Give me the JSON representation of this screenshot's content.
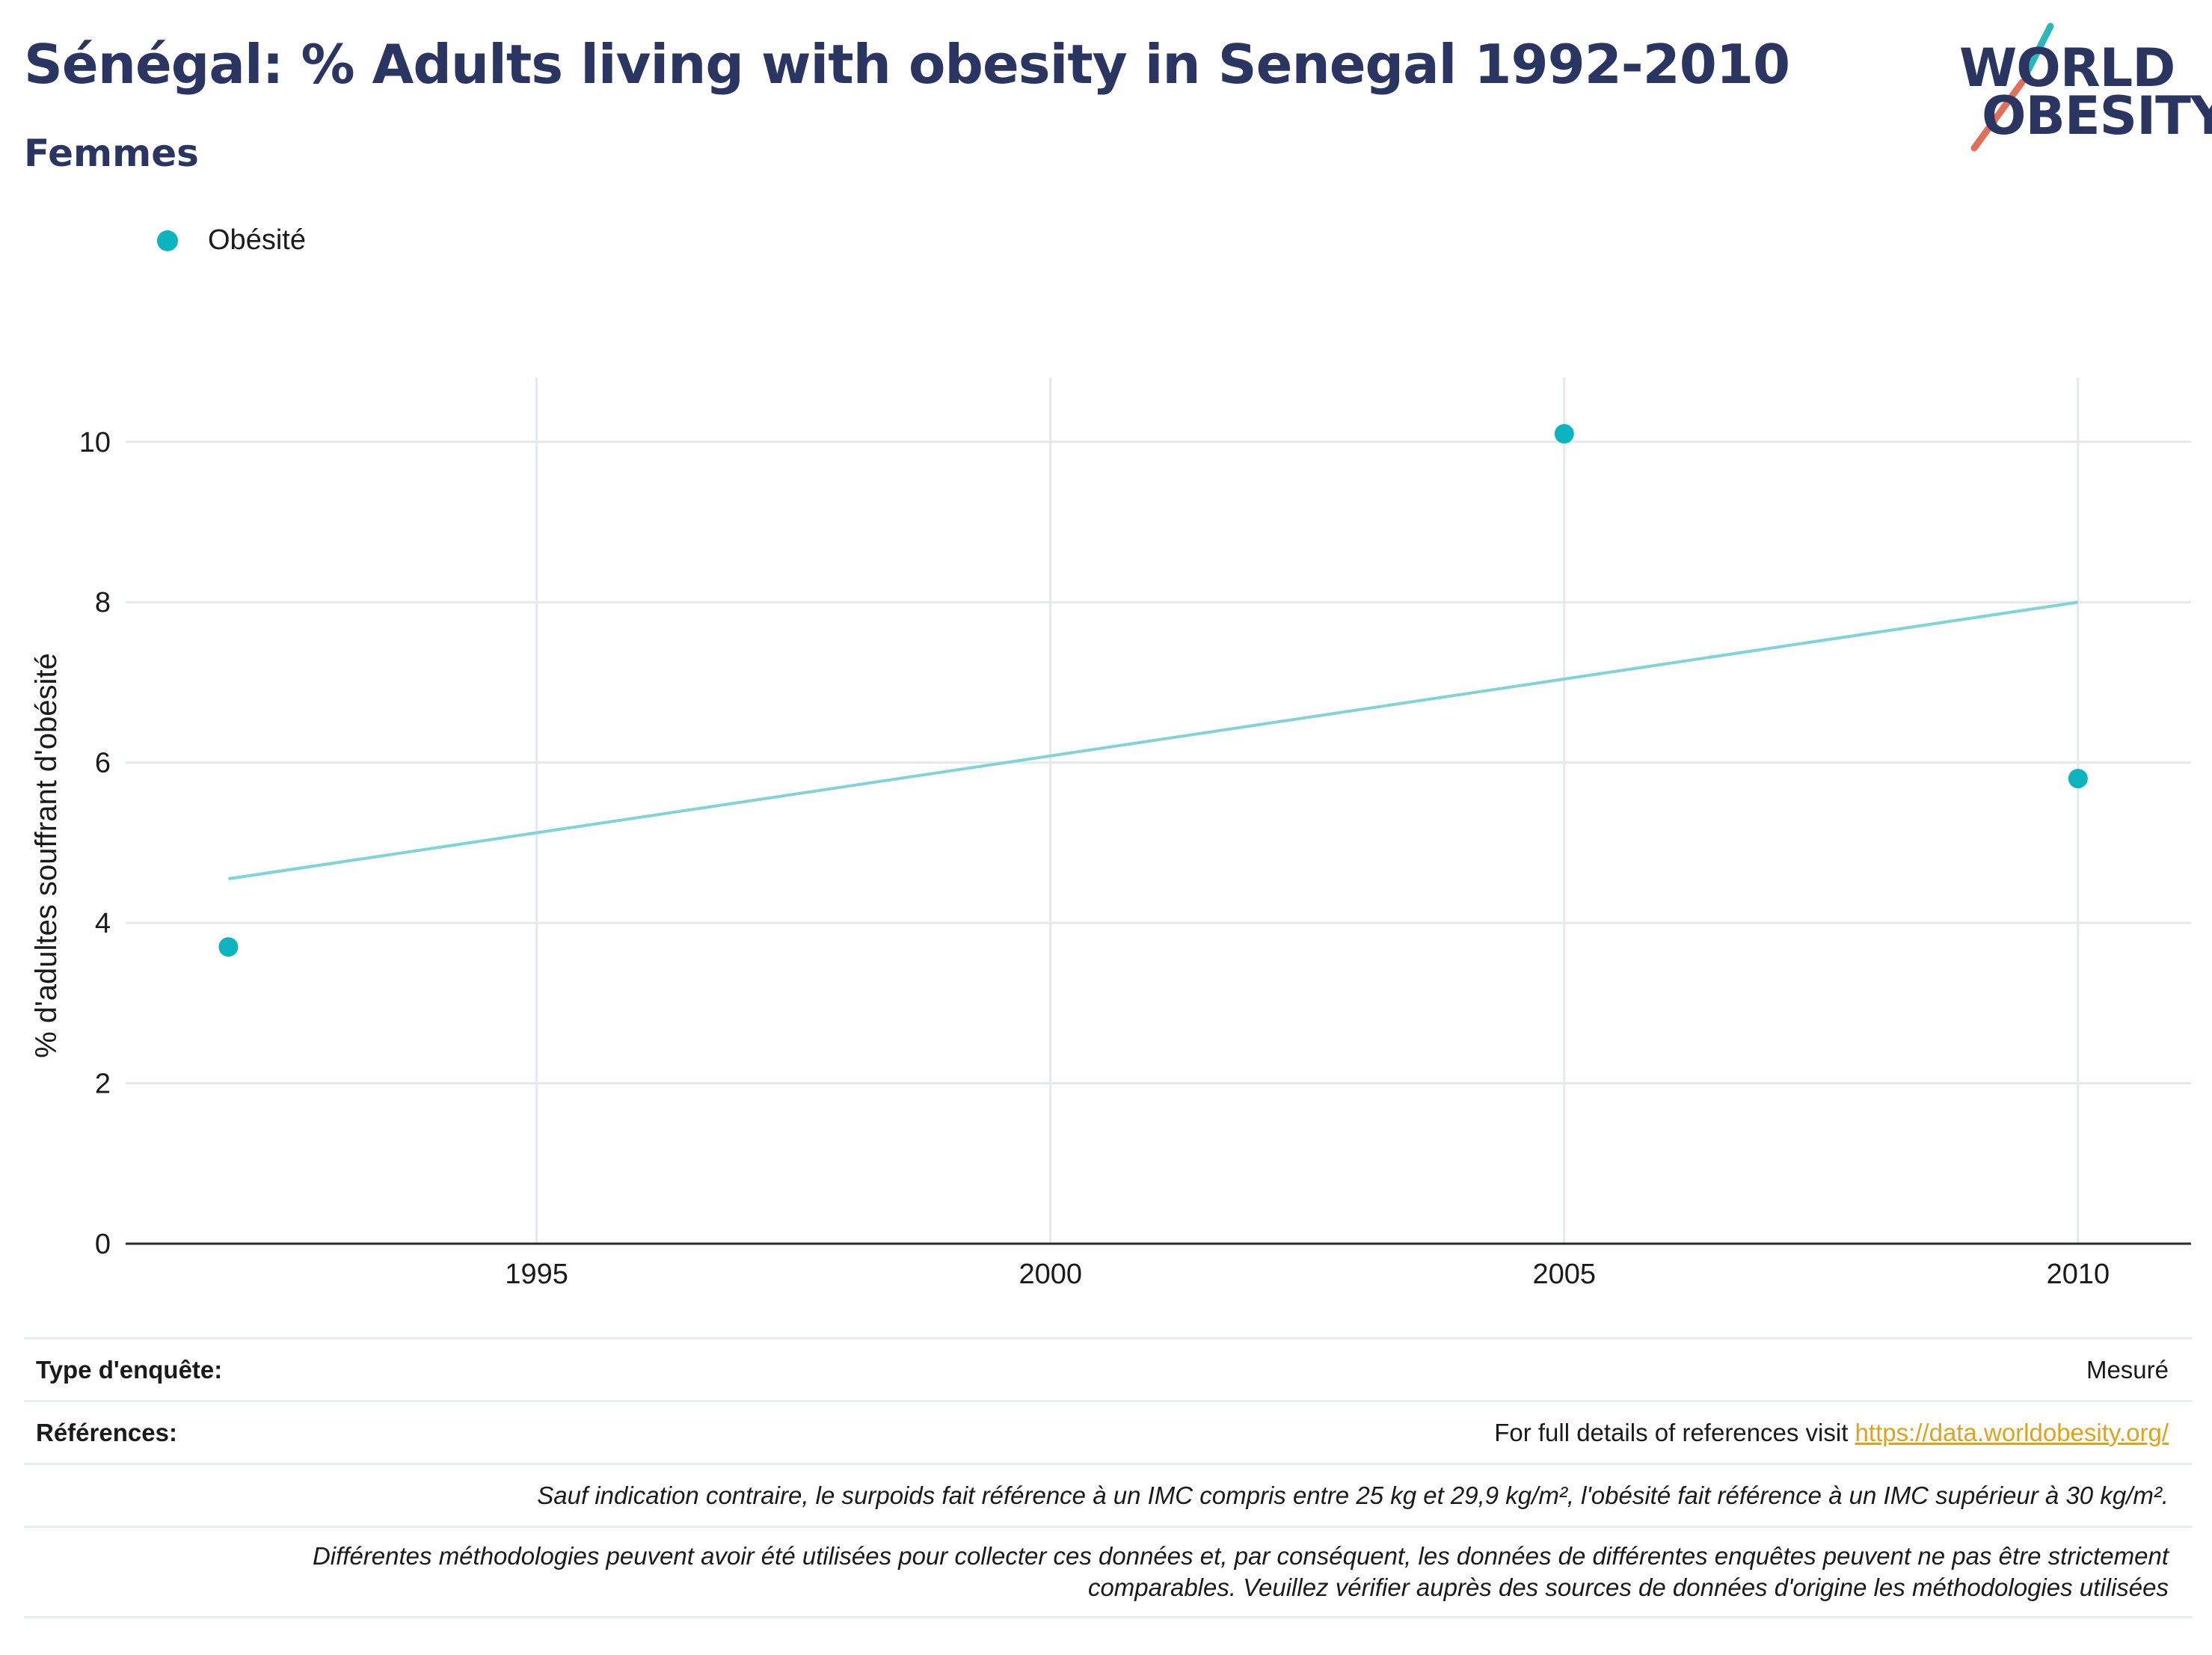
{
  "header": {
    "title": "Sénégal: % Adults living with obesity in Senegal 1992-2010",
    "subtitle": "Femmes"
  },
  "logo": {
    "line1": "WORLD",
    "line2": "OBESITY"
  },
  "colors": {
    "series": "#0db3be",
    "trend": "#7fd3d9",
    "title": "#2a3561",
    "link": "#e0a21a"
  },
  "chart_data": {
    "type": "scatter",
    "legend_placement": "top-left",
    "grid": true,
    "ylabel": "% d'adultes souffrant d'obésité",
    "xlabel": "",
    "xlim": [
      1991,
      2011.1
    ],
    "ylim": [
      0,
      10.8
    ],
    "x_ticks": [
      1995,
      2000,
      2005,
      2010
    ],
    "y_ticks": [
      0,
      2,
      4,
      6,
      8,
      10
    ],
    "series": [
      {
        "name": "Obésité",
        "x": [
          1992,
          2005,
          2010
        ],
        "y": [
          3.7,
          10.1,
          5.8
        ]
      }
    ],
    "trendline": {
      "x": [
        1992,
        2010
      ],
      "y": [
        4.55,
        8.0
      ]
    }
  },
  "footer": {
    "survey_type_label": "Type d'enquête:",
    "survey_type_value": "Mesuré",
    "references_label": "Références:",
    "references_text": "For full details of references visit ",
    "references_link": "https://data.worldobesity.org/",
    "note1": "Sauf indication contraire, le surpoids fait référence à un IMC compris entre 25 kg et 29,9 kg/m², l'obésité fait référence à un IMC supérieur à 30 kg/m².",
    "note2_line1": "Différentes méthodologies peuvent avoir été utilisées pour collecter ces données et, par conséquent, les données de différentes enquêtes peuvent ne pas être strictement",
    "note2_line2": "comparables. Veuillez vérifier auprès des sources de données d'origine les méthodologies utilisées"
  }
}
